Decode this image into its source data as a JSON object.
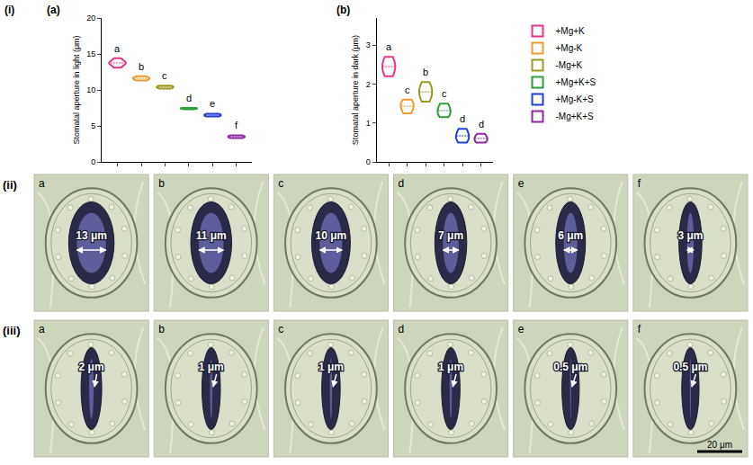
{
  "panel_label": "(i)",
  "chart_data": [
    {
      "type": "violin",
      "title": "(a)",
      "y_label": "Stomatal aperture in light (μm)",
      "ylim": [
        0,
        20
      ],
      "yticks": [
        0,
        5,
        10,
        15,
        20
      ],
      "tick_labels": "y",
      "grid": false,
      "annotations": [
        "a",
        "b",
        "c",
        "d",
        "e",
        "f"
      ],
      "series": [
        {
          "name": "+Mg+K",
          "color": "#e6338c",
          "values": [
            13.1,
            13.5,
            13.7,
            13.8,
            14.0,
            14.4
          ]
        },
        {
          "name": "+Mg-K",
          "color": "#f29a2e",
          "values": [
            11.3,
            11.5,
            11.6,
            11.7,
            11.9
          ]
        },
        {
          "name": "-Mg+K",
          "color": "#9c9a1e",
          "values": [
            10.2,
            10.3,
            10.4,
            10.5,
            10.6
          ]
        },
        {
          "name": "+Mg+K+S",
          "color": "#2e9e3a",
          "values": [
            7.3,
            7.4,
            7.4,
            7.5,
            7.5
          ]
        },
        {
          "name": "+Mg-K+S",
          "color": "#2140d8",
          "values": [
            6.3,
            6.4,
            6.5,
            6.6,
            6.7
          ]
        },
        {
          "name": "-Mg+K+S",
          "color": "#8c2a9e",
          "values": [
            3.3,
            3.4,
            3.5,
            3.6,
            3.7
          ]
        }
      ]
    },
    {
      "type": "violin",
      "title": "(b)",
      "y_label": "Stomatal aperture in dark (μm)",
      "ylim": [
        0,
        3.7
      ],
      "yticks": [
        0,
        1,
        2,
        3
      ],
      "tick_labels": "y",
      "grid": false,
      "legend": "right",
      "annotations": [
        "a",
        "c",
        "b",
        "c",
        "d",
        "d"
      ],
      "series": [
        {
          "name": "+Mg+K",
          "color": "#e6338c",
          "values": [
            2.2,
            2.35,
            2.45,
            2.55,
            2.7
          ]
        },
        {
          "name": "+Mg-K",
          "color": "#f29a2e",
          "values": [
            1.25,
            1.35,
            1.45,
            1.5,
            1.6
          ]
        },
        {
          "name": "-Mg+K",
          "color": "#9c9a1e",
          "values": [
            1.55,
            1.7,
            1.8,
            1.9,
            2.05
          ]
        },
        {
          "name": "+Mg+K+S",
          "color": "#2e9e3a",
          "values": [
            1.15,
            1.25,
            1.3,
            1.4,
            1.5
          ]
        },
        {
          "name": "+Mg-K+S",
          "color": "#2140d8",
          "values": [
            0.5,
            0.6,
            0.65,
            0.75,
            0.85
          ]
        },
        {
          "name": "-Mg+K+S",
          "color": "#8c2a9e",
          "values": [
            0.5,
            0.55,
            0.6,
            0.65,
            0.72
          ]
        }
      ]
    }
  ],
  "micrographs": {
    "rows": [
      {
        "label": "(ii)",
        "panels": [
          {
            "letter": "a",
            "label": "13 μm",
            "aperture": 13
          },
          {
            "letter": "b",
            "label": "11 μm",
            "aperture": 11
          },
          {
            "letter": "c",
            "label": "10 μm",
            "aperture": 10
          },
          {
            "letter": "d",
            "label": "7 μm",
            "aperture": 7
          },
          {
            "letter": "e",
            "label": "6 μm",
            "aperture": 6
          },
          {
            "letter": "f",
            "label": "3 μm",
            "aperture": 3
          }
        ]
      },
      {
        "label": "(iii)",
        "panels": [
          {
            "letter": "a",
            "label": "2 μm",
            "aperture": 2
          },
          {
            "letter": "b",
            "label": "1 μm",
            "aperture": 1
          },
          {
            "letter": "c",
            "label": "1 μm",
            "aperture": 1
          },
          {
            "letter": "d",
            "label": "1 μm",
            "aperture": 1
          },
          {
            "letter": "e",
            "label": "0.5 μm",
            "aperture": 0.5
          },
          {
            "letter": "f",
            "label": "0.5 μm",
            "aperture": 0.5
          }
        ]
      }
    ],
    "scale_bar": {
      "value": 20,
      "label": "20 μm"
    }
  }
}
